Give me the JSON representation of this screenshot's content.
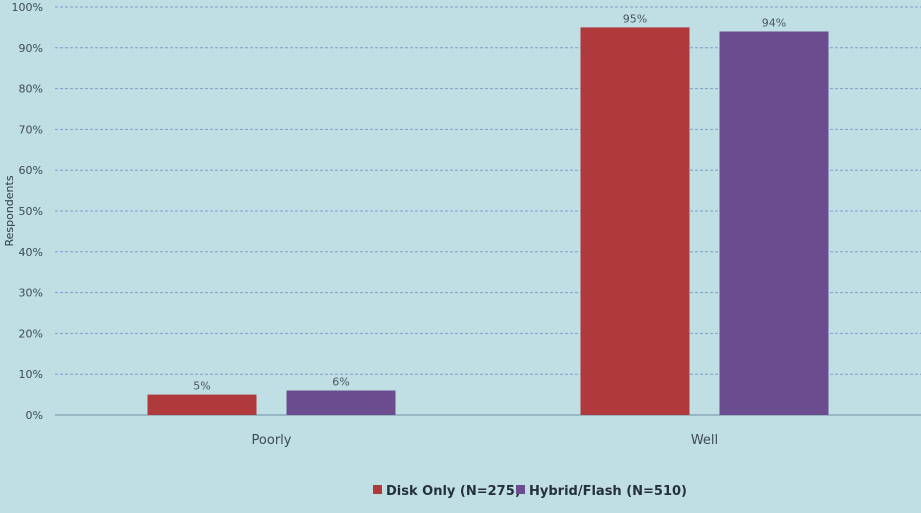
{
  "chart_data": {
    "type": "bar",
    "categories": [
      "Poorly",
      "Well"
    ],
    "series": [
      {
        "name": "Disk Only (N=275)",
        "values": [
          5,
          95
        ],
        "labels": [
          "5%",
          "95%"
        ],
        "color": "#b0393b"
      },
      {
        "name": "Hybrid/Flash (N=510)",
        "values": [
          6,
          94
        ],
        "labels": [
          "6%",
          "94%"
        ],
        "color": "#6b4c8f"
      }
    ],
    "ylabel": "Respondents",
    "xlabel": "",
    "ylim": [
      0,
      100
    ],
    "yticks": [
      0,
      10,
      20,
      30,
      40,
      50,
      60,
      70,
      80,
      90,
      100
    ],
    "ytick_labels": [
      "0%",
      "10%",
      "20%",
      "30%",
      "40%",
      "50%",
      "60%",
      "70%",
      "80%",
      "90%",
      "100%"
    ],
    "grid": true,
    "legend_position": "bottom",
    "colors": {
      "background": "#bfdfe5",
      "grid": "#7f9fc9",
      "axis": "#6f8fa0"
    }
  }
}
